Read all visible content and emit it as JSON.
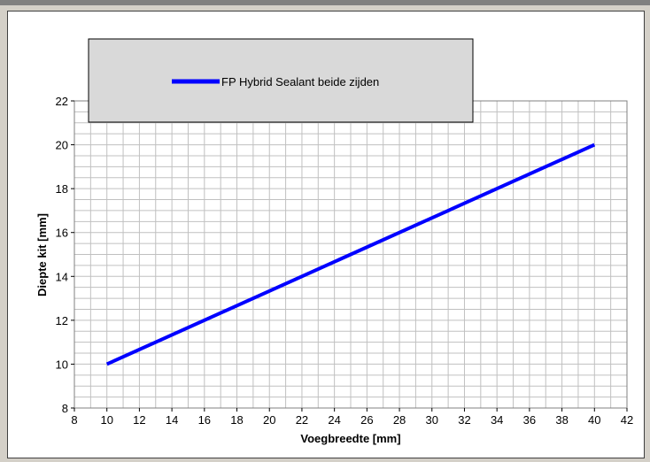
{
  "chart_data": {
    "type": "line",
    "title": "",
    "xlabel": "Voegbreedte [mm]",
    "ylabel": "Diepte kit [mm]",
    "xlim": [
      8,
      42
    ],
    "ylim": [
      8,
      22
    ],
    "x_ticks": [
      "8",
      "10",
      "12",
      "14",
      "16",
      "18",
      "20",
      "22",
      "24",
      "26",
      "28",
      "30",
      "32",
      "34",
      "36",
      "38",
      "40",
      "42"
    ],
    "y_ticks": [
      "8",
      "10",
      "12",
      "14",
      "16",
      "18",
      "20",
      "22"
    ],
    "grid": true,
    "legend_placement": "top",
    "series": [
      {
        "name": "FP Hybrid Sealant beide zijden",
        "color": "#0000ff",
        "x": [
          10,
          40
        ],
        "y": [
          10,
          20
        ]
      }
    ]
  }
}
